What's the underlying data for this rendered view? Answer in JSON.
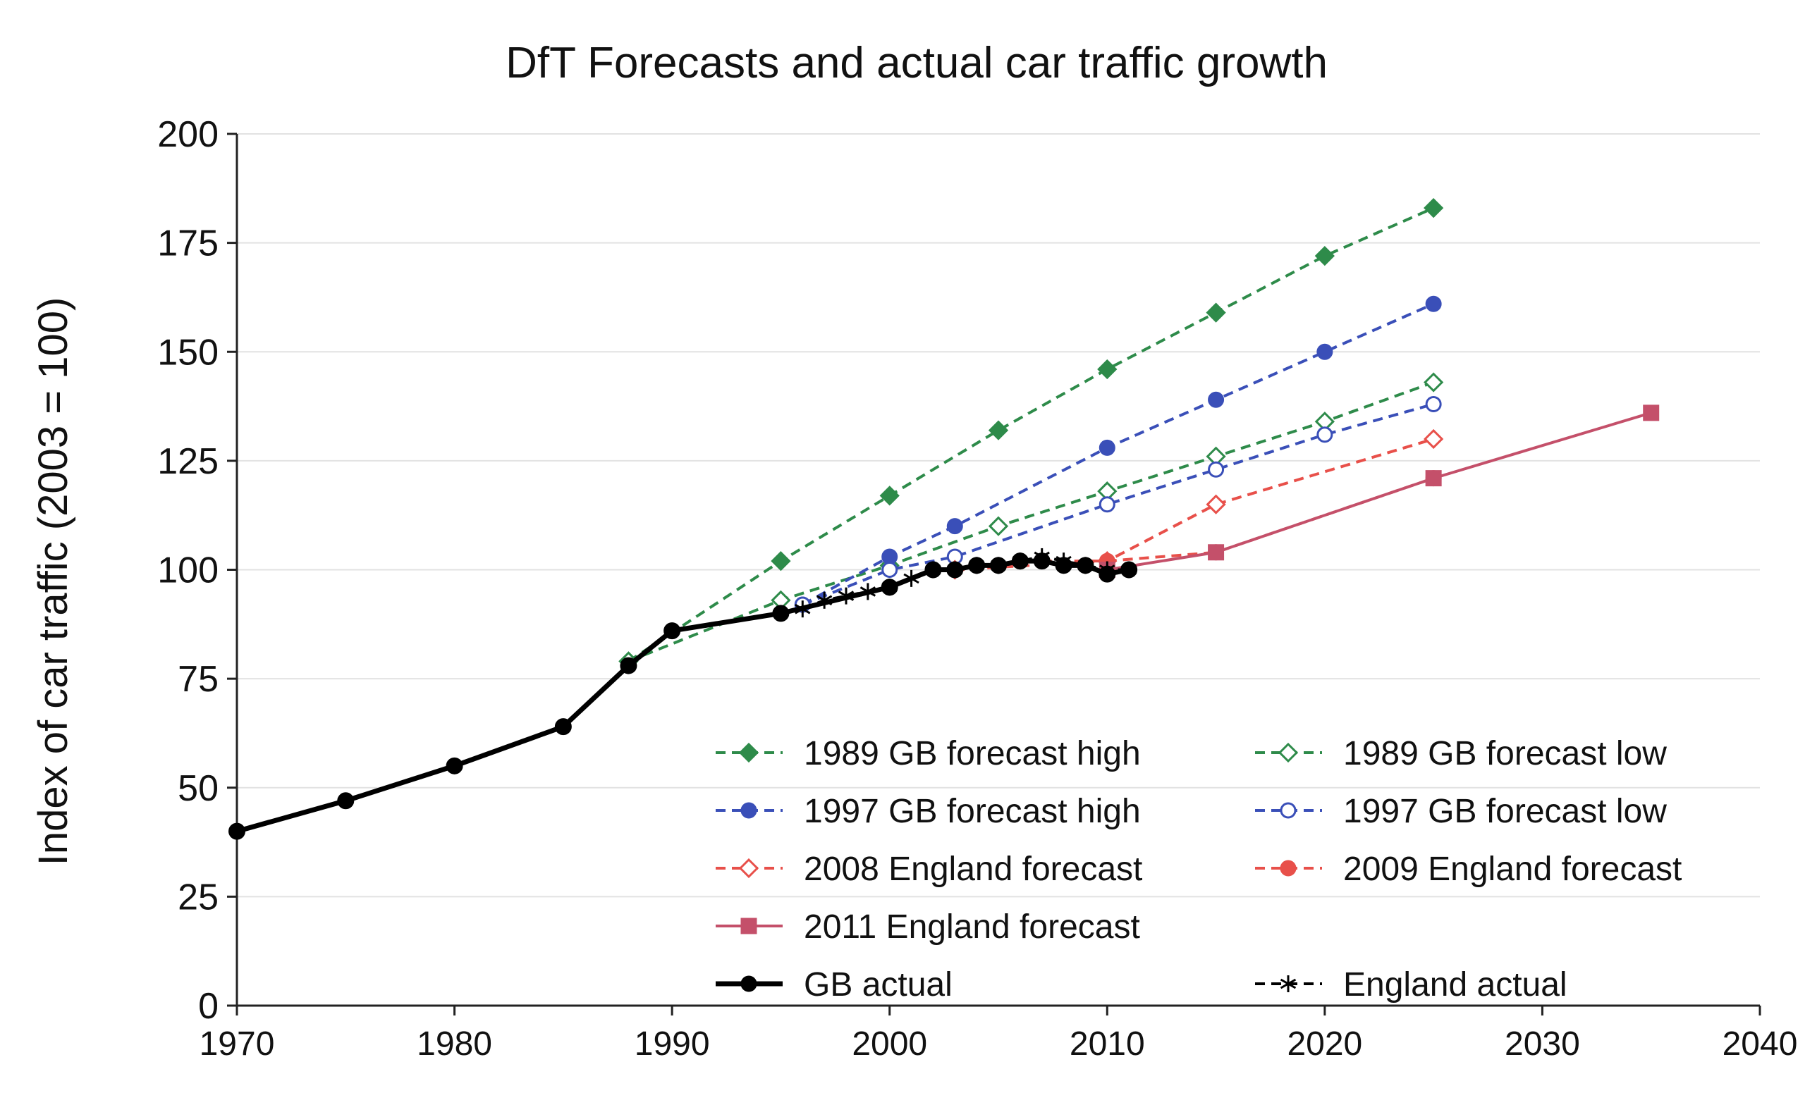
{
  "chart_data": {
    "type": "line",
    "title": "DfT Forecasts and actual car traffic growth",
    "xlabel": "",
    "ylabel": "Index of car traffic (2003 = 100)",
    "xlim": [
      1970,
      2040
    ],
    "ylim": [
      0,
      200
    ],
    "xticks": [
      1970,
      1980,
      1990,
      2000,
      2010,
      2020,
      2030,
      2040
    ],
    "yticks": [
      0,
      25,
      50,
      75,
      100,
      125,
      150,
      175,
      200
    ],
    "grid": true,
    "legend_position": "bottom-right",
    "series": [
      {
        "name": "1989 GB forecast high",
        "color": "#2e8b4a",
        "dash": true,
        "marker": "diamond",
        "filled": true,
        "x": [
          1988,
          1995,
          2000,
          2005,
          2010,
          2015,
          2020,
          2025
        ],
        "y": [
          79,
          102,
          117,
          132,
          146,
          159,
          172,
          183
        ]
      },
      {
        "name": "1989 GB forecast low",
        "color": "#2e8b4a",
        "dash": true,
        "marker": "diamond",
        "filled": false,
        "x": [
          1988,
          1995,
          2000,
          2005,
          2010,
          2015,
          2020,
          2025
        ],
        "y": [
          79,
          93,
          101,
          110,
          118,
          126,
          134,
          143
        ]
      },
      {
        "name": "1997 GB forecast high",
        "color": "#3a4fb8",
        "dash": true,
        "marker": "circle",
        "filled": true,
        "x": [
          1996,
          2000,
          2003,
          2010,
          2015,
          2020,
          2025
        ],
        "y": [
          92,
          103,
          110,
          128,
          139,
          150,
          161
        ]
      },
      {
        "name": "1997 GB forecast low",
        "color": "#3a4fb8",
        "dash": true,
        "marker": "circle",
        "filled": false,
        "x": [
          1996,
          2000,
          2003,
          2010,
          2015,
          2020,
          2025
        ],
        "y": [
          92,
          100,
          103,
          115,
          123,
          131,
          138
        ]
      },
      {
        "name": "2008 England forecast",
        "color": "#e8504a",
        "dash": true,
        "marker": "diamond",
        "filled": false,
        "x": [
          2003,
          2010,
          2015,
          2025
        ],
        "y": [
          100,
          102,
          115,
          130
        ]
      },
      {
        "name": "2009 England forecast",
        "color": "#e8504a",
        "dash": true,
        "marker": "circle",
        "filled": true,
        "x": [
          2007,
          2010,
          2015,
          2025
        ],
        "y": [
          102,
          102,
          104,
          121
        ]
      },
      {
        "name": "2011 England forecast",
        "color": "#c4506a",
        "dash": false,
        "marker": "square",
        "filled": true,
        "x": [
          2010,
          2015,
          2025,
          2035
        ],
        "y": [
          100,
          104,
          121,
          136
        ]
      },
      {
        "name": "GB actual",
        "color": "#000000",
        "dash": false,
        "marker": "circle",
        "filled": true,
        "x": [
          1970,
          1975,
          1980,
          1985,
          1988,
          1990,
          1995,
          2000,
          2002,
          2003,
          2004,
          2005,
          2006,
          2007,
          2008,
          2009,
          2010,
          2011
        ],
        "y": [
          40,
          47,
          55,
          64,
          78,
          86,
          90,
          96,
          100,
          100,
          101,
          101,
          102,
          102,
          101,
          101,
          99,
          100
        ]
      },
      {
        "name": "England actual",
        "color": "#000000",
        "dash": true,
        "marker": "star",
        "filled": false,
        "x": [
          1996,
          1997,
          1998,
          1999,
          2000,
          2001,
          2002,
          2003,
          2004,
          2005,
          2006,
          2007,
          2008,
          2009,
          2010,
          2011
        ],
        "y": [
          91,
          93,
          94,
          95,
          96,
          98,
          100,
          100,
          101,
          101,
          102,
          103,
          102,
          101,
          100,
          100
        ]
      }
    ]
  }
}
